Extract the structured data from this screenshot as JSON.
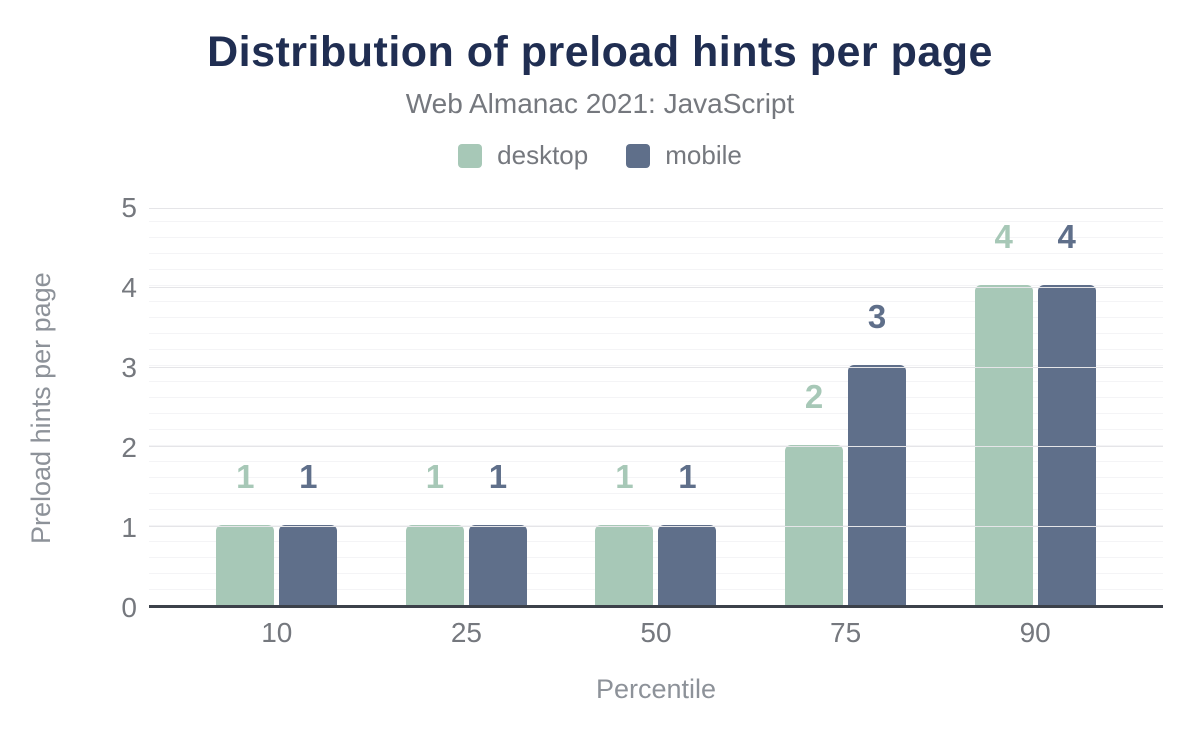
{
  "header": {
    "title": "Distribution of preload hints per page",
    "subtitle": "Web Almanac 2021: JavaScript"
  },
  "chart_data": {
    "type": "bar",
    "title": "Distribution of preload hints per page",
    "subtitle": "Web Almanac 2021: JavaScript",
    "categories": [
      "10",
      "25",
      "50",
      "75",
      "90"
    ],
    "series": [
      {
        "name": "desktop",
        "color": "#a7c8b7",
        "values": [
          1,
          1,
          1,
          2,
          4
        ]
      },
      {
        "name": "mobile",
        "color": "#5f6f8a",
        "values": [
          1,
          1,
          1,
          3,
          4
        ]
      }
    ],
    "xlabel": "Percentile",
    "ylabel": "Preload hints per page",
    "ylim": [
      0,
      5
    ],
    "yticks": [
      0,
      1,
      2,
      3,
      4,
      5
    ],
    "minor_grid_step": 0.2,
    "grid": "horizontal",
    "legend_position": "top",
    "data_labels": true
  },
  "colors": {
    "title": "#202e52",
    "text_muted": "#75787e",
    "axis_title": "#8d9299",
    "axis_line": "#3c414a",
    "grid_major": "#e5e5e8",
    "grid_minor": "#f4f4f6",
    "background": "#ffffff",
    "desktop": "#a7c8b7",
    "mobile": "#5f6f8a"
  }
}
